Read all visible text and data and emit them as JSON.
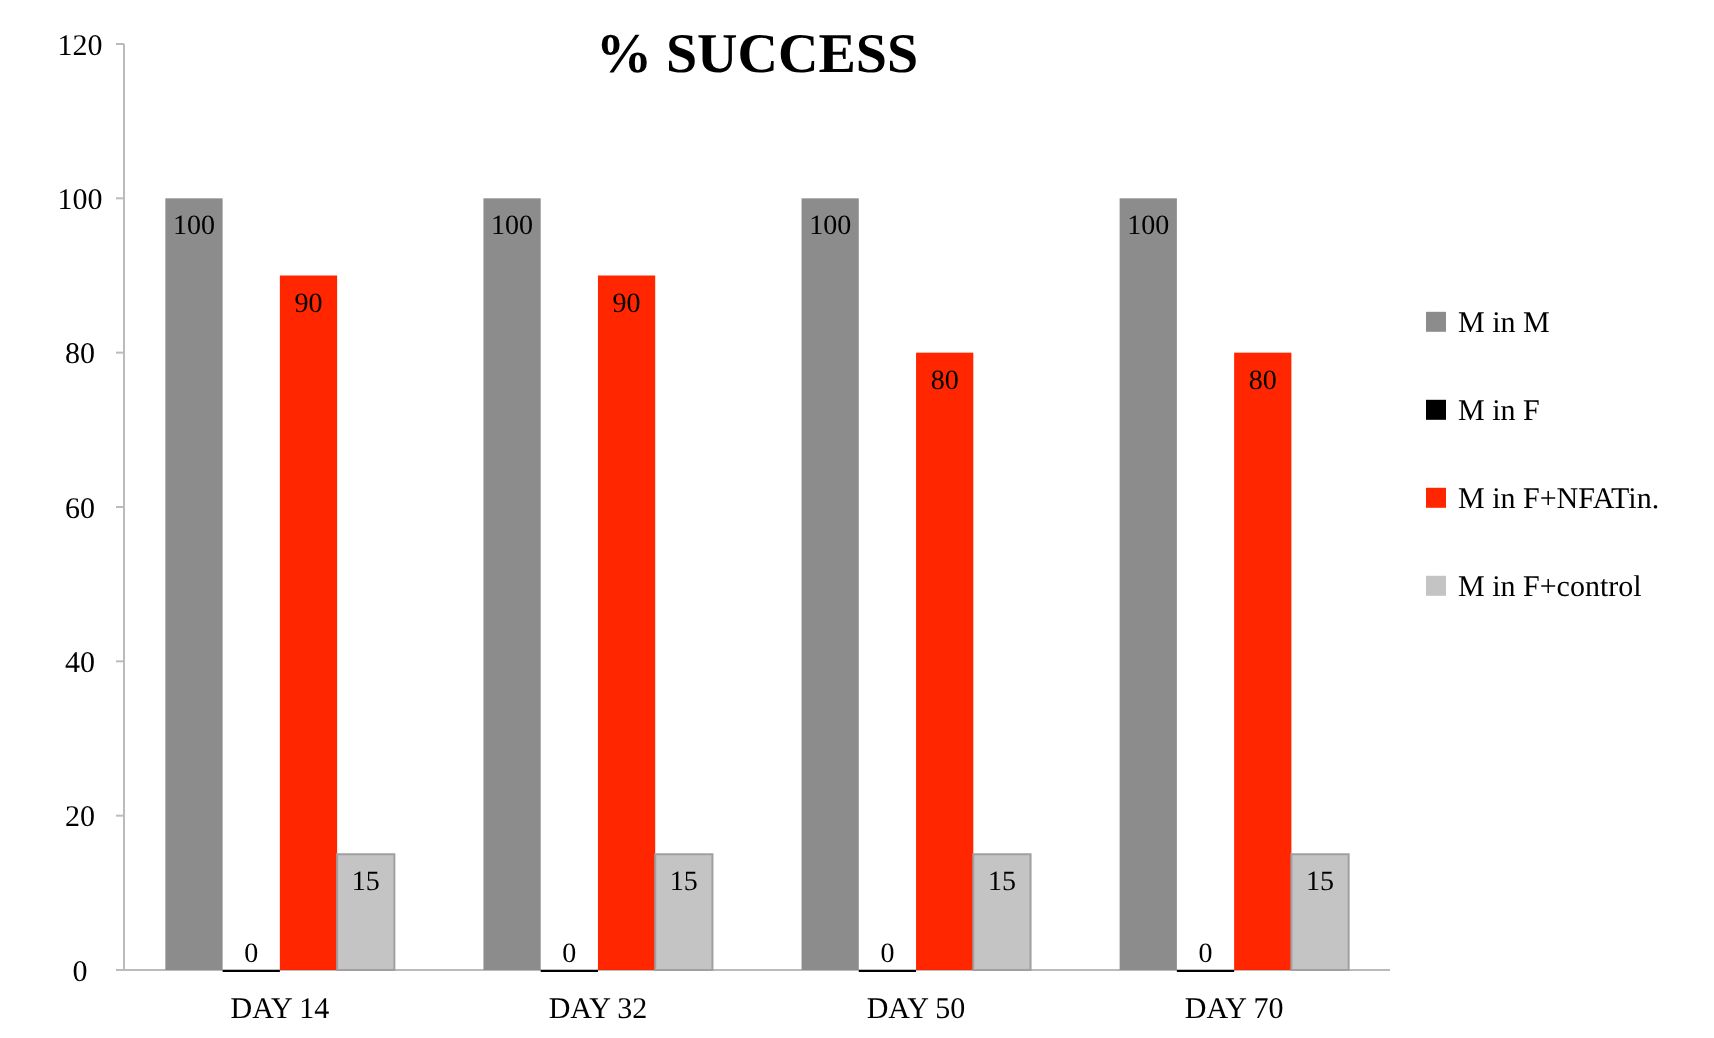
{
  "chart_data": {
    "type": "bar",
    "title": "% SUCCESS",
    "categories": [
      "DAY 14",
      "DAY 32",
      "DAY 50",
      "DAY 70"
    ],
    "series": [
      {
        "name": "M in M",
        "color": "#8c8c8c",
        "values": [
          100,
          100,
          100,
          100
        ]
      },
      {
        "name": "M in F",
        "color": "#000000",
        "values": [
          0,
          0,
          0,
          0
        ]
      },
      {
        "name": "M in F+NFATin.",
        "color": "#ff2600",
        "values": [
          90,
          90,
          80,
          80
        ]
      },
      {
        "name": "M in F+control",
        "color": "#c4c4c4",
        "values": [
          15,
          15,
          15,
          15
        ]
      }
    ],
    "ylim": [
      0,
      120
    ],
    "yticks": [
      0,
      20,
      40,
      60,
      80,
      100,
      120
    ],
    "grid": false,
    "legend": "right",
    "data_labels": true
  }
}
